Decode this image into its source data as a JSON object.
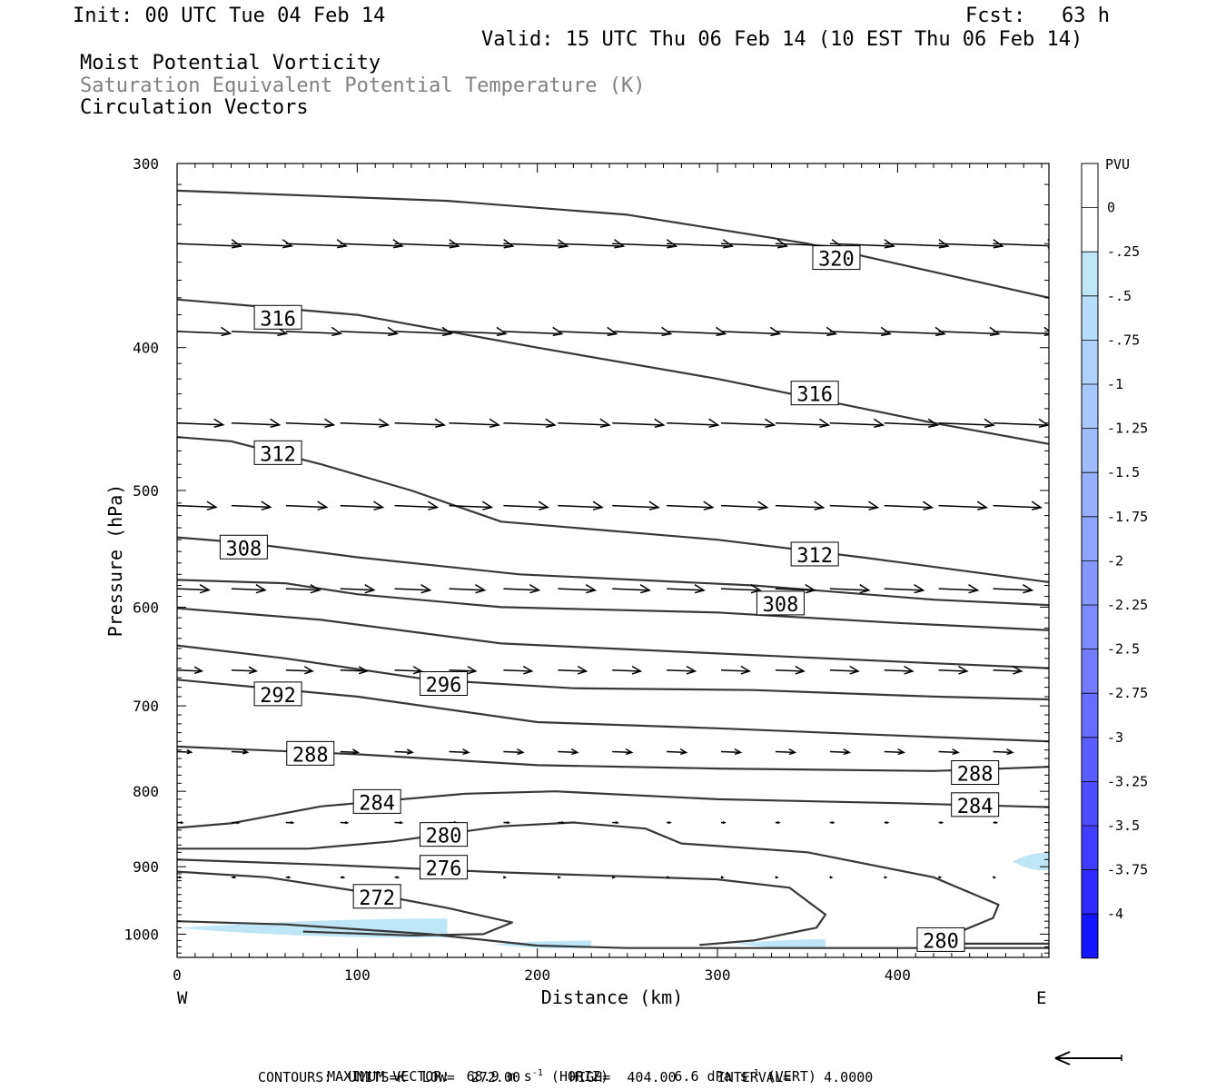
{
  "header": {
    "init": "Init: 00 UTC Tue 04 Feb 14",
    "fcst": "Fcst:   63 h",
    "valid": "Valid: 15 UTC Thu 06 Feb 14 (10 EST Thu 06 Feb 14)",
    "field1": "Moist Potential Vorticity",
    "field2": "Saturation Equivalent Potential Temperature (K)",
    "field3": "Circulation Vectors"
  },
  "footer": {
    "max_vector_label": "MAXIMUM VECTOR:",
    "max_vector_horiz": "68.9 m s",
    "horiz_exp": "-1",
    "horiz_tag": "(HORIZ)",
    "max_vector_vert": "6.6 dPa s",
    "vert_exp": "-1",
    "vert_tag": "(VERT)",
    "contours_line": "CONTOURS:  UNITS=K  LOW=  272.00      HIGH=  404.00     INTERVAL=    4.0000"
  },
  "colors": {
    "pv_shade": "#bfe6f7",
    "contour": "#383838",
    "frame": "#000000"
  },
  "chart_data": {
    "type": "cross-section",
    "xlabel": "Distance (km)",
    "ylabel": "Pressure (hPa)",
    "xlim": [
      0,
      484
    ],
    "ylim": [
      1037,
      300
    ],
    "y_scale": "log-pressure",
    "x_ticks": [
      0,
      100,
      200,
      300,
      400
    ],
    "y_ticks": [
      300,
      400,
      500,
      600,
      700,
      800,
      900,
      1000
    ],
    "x_end_labels": [
      "W",
      "E"
    ],
    "contour_units": "K",
    "contour_low": 272,
    "contour_high": 404,
    "contour_interval": 4,
    "contours": [
      {
        "value": 320,
        "label": "320",
        "label_at": [
          366,
          348
        ],
        "points": [
          [
            0,
            313
          ],
          [
            150,
            318
          ],
          [
            250,
            325
          ],
          [
            350,
            340
          ],
          [
            484,
            370
          ]
        ]
      },
      {
        "value": 316,
        "label": "316",
        "label_at": [
          56,
          382
        ],
        "points": [
          [
            0,
            371
          ],
          [
            100,
            380
          ],
          [
            200,
            400
          ],
          [
            300,
            420
          ],
          [
            420,
            450
          ],
          [
            484,
            465
          ]
        ]
      },
      {
        "value": 316,
        "label": "316",
        "label_at": [
          354,
          430
        ],
        "points": []
      },
      {
        "value": 312,
        "label": "312",
        "label_at": [
          56,
          472
        ],
        "points": [
          [
            0,
            460
          ],
          [
            30,
            463
          ],
          [
            80,
            480
          ],
          [
            130,
            500
          ],
          [
            180,
            525
          ],
          [
            300,
            540
          ],
          [
            380,
            555
          ],
          [
            484,
            577
          ]
        ]
      },
      {
        "value": 312,
        "label": "312",
        "label_at": [
          354,
          553
        ],
        "points": []
      },
      {
        "value": 308,
        "label": "308",
        "label_at": [
          37,
          547
        ],
        "points": [
          [
            0,
            538
          ],
          [
            40,
            543
          ],
          [
            100,
            555
          ],
          [
            190,
            570
          ],
          [
            320,
            580
          ],
          [
            420,
            593
          ],
          [
            484,
            598
          ]
        ]
      },
      {
        "value": 308,
        "label": "308",
        "label_at": [
          335,
          597
        ],
        "points": []
      },
      {
        "value": 304,
        "label": "",
        "label_at": null,
        "points": [
          [
            0,
            575
          ],
          [
            60,
            578
          ],
          [
            100,
            588
          ],
          [
            180,
            600
          ],
          [
            300,
            605
          ],
          [
            400,
            615
          ],
          [
            484,
            622
          ]
        ]
      },
      {
        "value": 300,
        "label": "",
        "label_at": null,
        "points": [
          [
            0,
            601
          ],
          [
            80,
            612
          ],
          [
            180,
            635
          ],
          [
            300,
            645
          ],
          [
            420,
            655
          ],
          [
            484,
            660
          ]
        ]
      },
      {
        "value": 296,
        "label": "296",
        "label_at": [
          148,
          677
        ],
        "points": [
          [
            0,
            637
          ],
          [
            60,
            650
          ],
          [
            140,
            672
          ],
          [
            220,
            681
          ],
          [
            320,
            683
          ],
          [
            420,
            690
          ],
          [
            484,
            693
          ]
        ]
      },
      {
        "value": 292,
        "label": "292",
        "label_at": [
          56,
          688
        ],
        "points": [
          [
            0,
            672
          ],
          [
            100,
            690
          ],
          [
            200,
            718
          ],
          [
            300,
            725
          ],
          [
            420,
            735
          ],
          [
            484,
            740
          ]
        ]
      },
      {
        "value": 288,
        "label": "288",
        "label_at": [
          74,
          755
        ],
        "points": [
          [
            0,
            746
          ],
          [
            100,
            755
          ],
          [
            200,
            768
          ],
          [
            300,
            772
          ],
          [
            420,
            775
          ],
          [
            484,
            770
          ]
        ]
      },
      {
        "value": 288,
        "label": "288",
        "label_at": [
          443,
          778
        ],
        "points": []
      },
      {
        "value": 284,
        "label": "284",
        "label_at": [
          111,
          814
        ],
        "points": [
          [
            0,
            847
          ],
          [
            30,
            841
          ],
          [
            80,
            819
          ],
          [
            160,
            803
          ],
          [
            210,
            800
          ],
          [
            300,
            810
          ],
          [
            400,
            815
          ],
          [
            484,
            820
          ]
        ]
      },
      {
        "value": 284,
        "label": "284",
        "label_at": [
          443,
          818
        ],
        "points": []
      },
      {
        "value": 280,
        "label": "280",
        "label_at": [
          148,
          857
        ],
        "points": [
          [
            0,
            875
          ],
          [
            73,
            875
          ],
          [
            120,
            865
          ],
          [
            180,
            845
          ],
          [
            220,
            840
          ],
          [
            260,
            848
          ],
          [
            280,
            868
          ],
          [
            350,
            880
          ],
          [
            420,
            915
          ],
          [
            456,
            955
          ],
          [
            453,
            975
          ],
          [
            440,
            990
          ],
          [
            420,
            1015
          ],
          [
            484,
            1015
          ]
        ]
      },
      {
        "value": 280,
        "label": "280",
        "label_at": [
          424,
          1010
        ],
        "points": []
      },
      {
        "value": 276,
        "label": "276",
        "label_at": [
          148,
          902
        ],
        "points": [
          [
            0,
            890
          ],
          [
            80,
            897
          ],
          [
            180,
            908
          ],
          [
            300,
            918
          ],
          [
            340,
            930
          ],
          [
            360,
            970
          ],
          [
            355,
            990
          ],
          [
            320,
            1010
          ],
          [
            290,
            1017
          ]
        ]
      },
      {
        "value": 272,
        "label": "272",
        "label_at": [
          111,
          944
        ],
        "points": [
          [
            0,
            907
          ],
          [
            50,
            915
          ],
          [
            100,
            935
          ],
          [
            150,
            960
          ],
          [
            186,
            982
          ],
          [
            170,
            1000
          ],
          [
            130,
            1002
          ],
          [
            70,
            996
          ]
        ]
      },
      {
        "value": 272,
        "label": "",
        "label_at": null,
        "points": [
          [
            0,
            980
          ],
          [
            60,
            985
          ],
          [
            140,
            1000
          ],
          [
            200,
            1018
          ],
          [
            250,
            1022
          ],
          [
            484,
            1022
          ]
        ]
      }
    ],
    "pv_shading_pvu": [
      {
        "x": [
          0,
          150
        ],
        "p": [
          976,
          1005
        ],
        "pvu": -0.25
      },
      {
        "x": [
          175,
          230
        ],
        "p": [
          1010,
          1022
        ],
        "pvu": -0.25
      },
      {
        "x": [
          310,
          360
        ],
        "p": [
          1008,
          1022
        ],
        "pvu": -0.25
      },
      {
        "x": [
          464,
          484
        ],
        "p": [
          880,
          905
        ],
        "pvu": -0.25
      }
    ],
    "vector_rows": [
      {
        "p": 340,
        "u": [
          36,
          34,
          34,
          35,
          36,
          36,
          36,
          37,
          36,
          37,
          37,
          37,
          36,
          36,
          36,
          36
        ]
      },
      {
        "p": 390,
        "u": [
          30,
          31,
          31,
          32,
          32,
          32,
          33,
          33,
          33,
          33,
          33,
          34,
          34,
          34,
          34,
          34
        ]
      },
      {
        "p": 450,
        "u": [
          26,
          27,
          27,
          27,
          28,
          28,
          29,
          29,
          29,
          29,
          30,
          30,
          30,
          30,
          31,
          31
        ]
      },
      {
        "p": 512,
        "u": [
          22,
          22,
          23,
          24,
          24,
          24,
          25,
          25,
          26,
          26,
          26,
          27,
          27,
          27,
          27,
          27
        ]
      },
      {
        "p": 583,
        "u": [
          18,
          19,
          19,
          19,
          20,
          20,
          20,
          21,
          21,
          21,
          22,
          22,
          22,
          22,
          22,
          22
        ]
      },
      {
        "p": 662,
        "u": [
          14,
          14,
          15,
          15,
          15,
          15,
          16,
          16,
          16,
          16,
          16,
          16,
          16,
          16,
          16,
          16
        ]
      },
      {
        "p": 752,
        "u": [
          8,
          9,
          10,
          10,
          10,
          11,
          11,
          11,
          11,
          11,
          11,
          11,
          11,
          11,
          11,
          11
        ]
      },
      {
        "p": 840,
        "u": [
          3,
          4,
          4,
          4,
          4,
          4,
          3,
          3,
          3,
          2,
          2,
          2,
          2,
          2,
          2,
          2
        ]
      },
      {
        "p": 915,
        "u": [
          2,
          2,
          2,
          2,
          2,
          1,
          1,
          1,
          1,
          1,
          1,
          1,
          1,
          1,
          1,
          1
        ]
      }
    ],
    "colorbar": {
      "title": "PVU",
      "tick_labels": [
        "0",
        "-.25",
        "-.5",
        "-.75",
        "-1",
        "-1.25",
        "-1.5",
        "-1.75",
        "-2",
        "-2.25",
        "-2.5",
        "-2.75",
        "-3",
        "-3.25",
        "-3.5",
        "-3.75",
        "-4"
      ],
      "colors": [
        "#ffffff",
        "#ffffff",
        "#bfe6f7",
        "#b8ddf9",
        "#b0d2fa",
        "#a8c7fb",
        "#a0bcfb",
        "#98b0fc",
        "#8fa4fc",
        "#8697fc",
        "#7c8afd",
        "#727cfd",
        "#676dfe",
        "#5b5efe",
        "#4e4eff",
        "#403dff",
        "#2f2bff",
        "#1515ff"
      ]
    }
  }
}
